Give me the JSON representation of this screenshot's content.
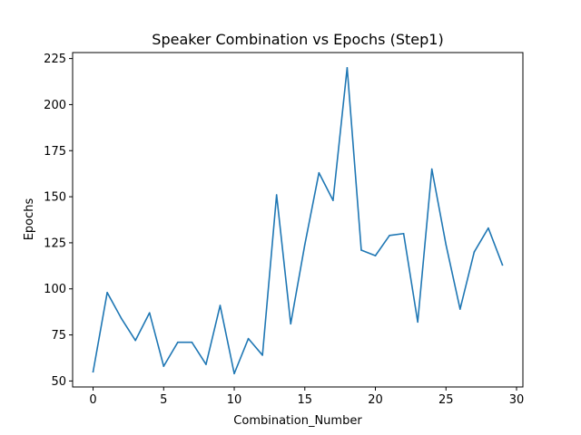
{
  "chart_data": {
    "type": "line",
    "title": "Speaker Combination vs Epochs (Step1)",
    "xlabel": "Combination_Number",
    "ylabel": "Epochs",
    "xlim": [
      -1.45,
      30.45
    ],
    "ylim": [
      46.75,
      228.25
    ],
    "xticks": [
      0,
      5,
      10,
      15,
      20,
      25,
      30
    ],
    "yticks": [
      50,
      75,
      100,
      125,
      150,
      175,
      200,
      225
    ],
    "grid": false,
    "line_color": "#1f77b4",
    "series": [
      {
        "x": [
          0,
          1,
          2,
          3,
          4,
          5,
          6,
          7,
          8,
          9,
          10,
          11,
          12,
          13,
          14,
          15,
          16,
          17,
          18,
          19,
          20,
          21,
          22,
          23,
          24,
          25,
          26,
          27,
          28,
          29
        ],
        "values": [
          55,
          98,
          84,
          72,
          87,
          58,
          71,
          71,
          59,
          91,
          54,
          73,
          64,
          151,
          81,
          124,
          163,
          148,
          220,
          121,
          118,
          129,
          130,
          82,
          165,
          124,
          89,
          120,
          133,
          113
        ]
      }
    ]
  }
}
